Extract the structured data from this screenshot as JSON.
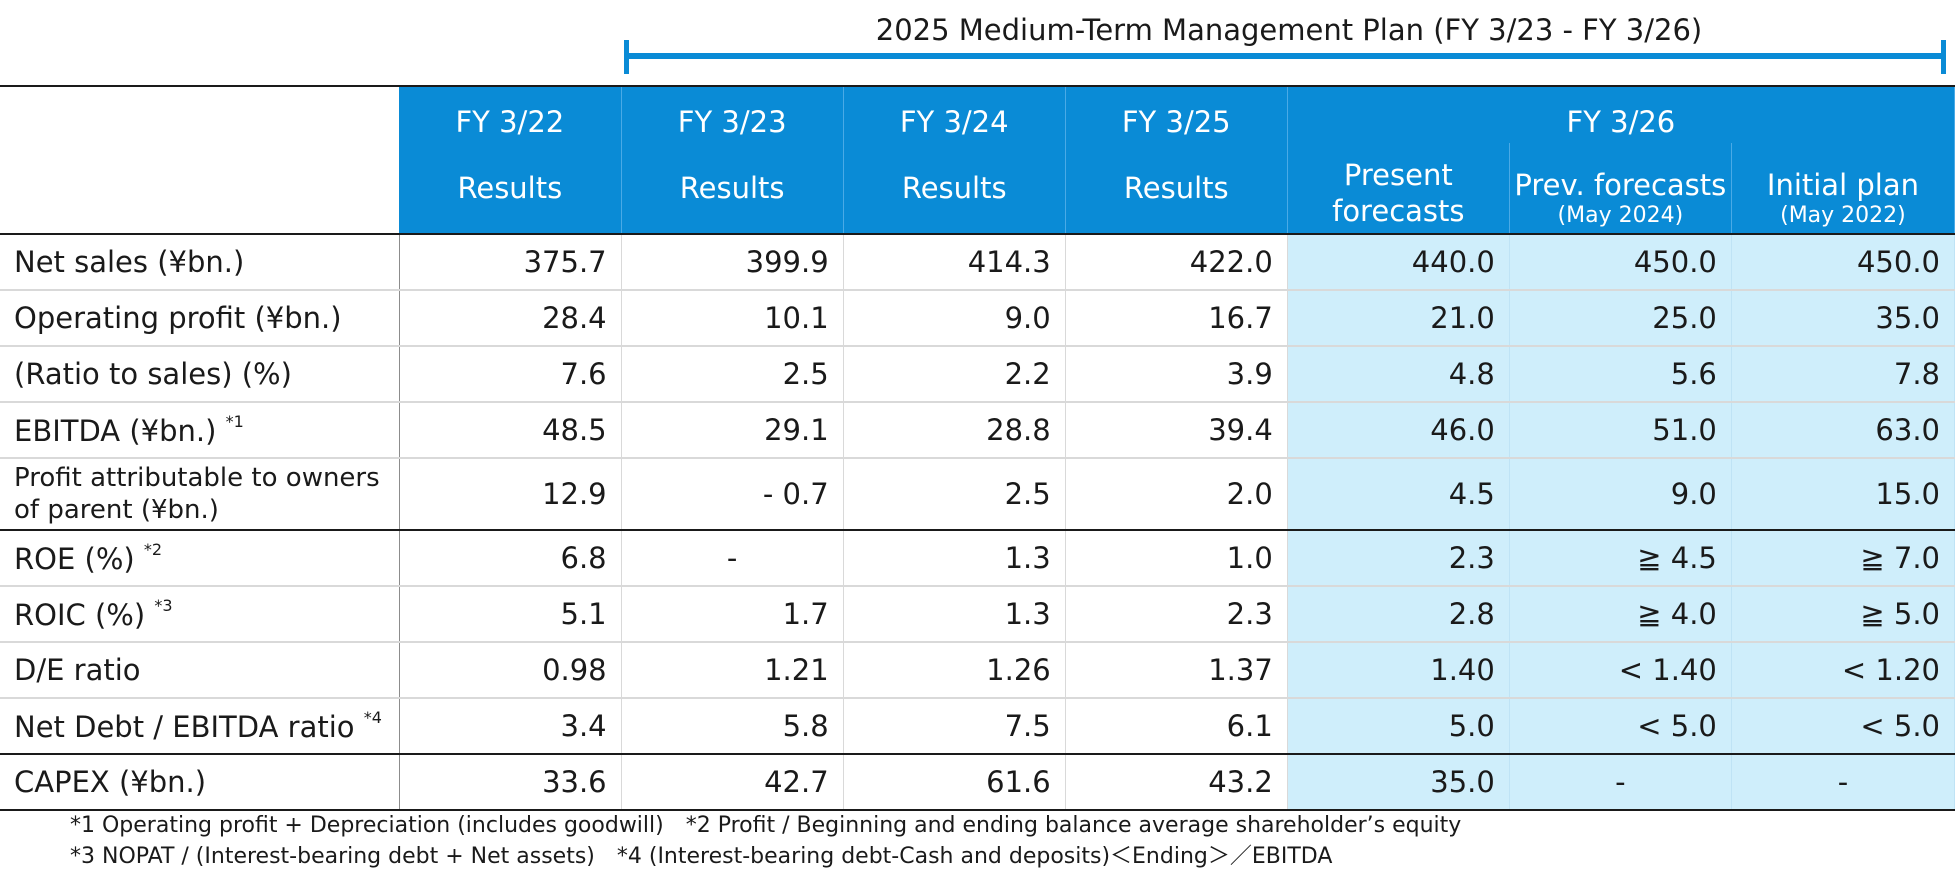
{
  "plan": {
    "title": "2025 Medium-Term Management Plan (FY 3/23 - FY 3/26)"
  },
  "header": {
    "years": [
      "FY 3/22",
      "FY 3/23",
      "FY 3/24",
      "FY 3/25"
    ],
    "results_label": "Results",
    "fy26": "FY 3/26",
    "present_line1": "Present",
    "present_line2": "forecasts",
    "prev_label": "Prev. forecasts",
    "prev_date": "(May 2024)",
    "initial_label": "Initial plan",
    "initial_date": "(May 2022)"
  },
  "rows": [
    {
      "label": "Net sales (¥bn.)",
      "note": "",
      "values": [
        "375.7",
        "399.9",
        "414.3",
        "422.0",
        "440.0",
        "450.0",
        "450.0"
      ]
    },
    {
      "label": "Operating profit (¥bn.)",
      "note": "",
      "values": [
        "28.4",
        "10.1",
        "9.0",
        "16.7",
        "21.0",
        "25.0",
        "35.0"
      ]
    },
    {
      "label": "(Ratio to sales) (%)",
      "note": "",
      "values": [
        "7.6",
        "2.5",
        "2.2",
        "3.9",
        "4.8",
        "5.6",
        "7.8"
      ]
    },
    {
      "label": "EBITDA (¥bn.)",
      "note": "*1",
      "values": [
        "48.5",
        "29.1",
        "28.8",
        "39.4",
        "46.0",
        "51.0",
        "63.0"
      ]
    },
    {
      "label": "Profit attributable to owners of parent (¥bn.)",
      "note": "",
      "values": [
        "12.9",
        "- 0.7",
        "2.5",
        "2.0",
        "4.5",
        "9.0",
        "15.0"
      ]
    },
    {
      "label": "ROE (%)",
      "note": "*2",
      "values": [
        "6.8",
        "-",
        "1.3",
        "1.0",
        "2.3",
        "≧ 4.5",
        "≧ 7.0"
      ]
    },
    {
      "label": "ROIC (%)",
      "note": "*3",
      "values": [
        "5.1",
        "1.7",
        "1.3",
        "2.3",
        "2.8",
        "≧ 4.0",
        "≧ 5.0"
      ]
    },
    {
      "label": "D/E ratio",
      "note": "",
      "values": [
        "0.98",
        "1.21",
        "1.26",
        "1.37",
        "1.40",
        "< 1.40",
        "< 1.20"
      ]
    },
    {
      "label": "Net Debt / EBITDA ratio",
      "note": "*4",
      "values": [
        "3.4",
        "5.8",
        "7.5",
        "6.1",
        "5.0",
        "< 5.0",
        "< 5.0"
      ]
    },
    {
      "label": "CAPEX (¥bn.)",
      "note": "",
      "values": [
        "33.6",
        "42.7",
        "61.6",
        "43.2",
        "35.0",
        "-",
        "-"
      ]
    }
  ],
  "footnotes": {
    "line1": "*1 Operating profit + Depreciation (includes goodwill)　*2 Profit / Beginning and ending balance average shareholder’s equity",
    "line2": "*3 NOPAT / (Interest-bearing debt + Net assets)　*4 (Interest-bearing debt-Cash and deposits)＜Ending＞／EBITDA"
  }
}
